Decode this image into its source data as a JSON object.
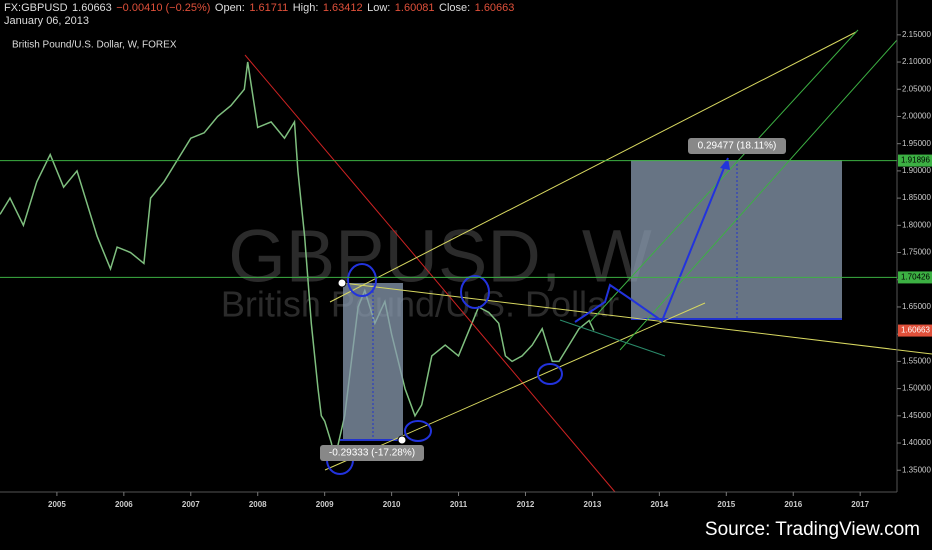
{
  "header": {
    "symbol": "FX:GBPUSD",
    "price": "1.60663",
    "change": "−0.00410 (−0.25%)",
    "open_label": "Open:",
    "open": "1.61711",
    "high_label": "High:",
    "high": "1.63412",
    "low_label": "Low:",
    "low": "1.60081",
    "close_label": "Close:",
    "close": "1.60663",
    "date": "January 06, 2013"
  },
  "chart_data": {
    "type": "line",
    "title": "British Pound/U.S. Dollar, W, FOREX",
    "watermark": "GBPUSD, W",
    "watermark_sub": "British Pound/U.S. Dollar",
    "xlim": [
      2004.15,
      2017.55
    ],
    "xticks": [
      2005,
      2006,
      2007,
      2008,
      2009,
      2010,
      2011,
      2012,
      2013,
      2014,
      2015,
      2016,
      2017
    ],
    "ylim": [
      1.31,
      2.214
    ],
    "yticks": [
      {
        "value": 1.35,
        "label": "1.35000"
      },
      {
        "value": 1.4,
        "label": "1.40000"
      },
      {
        "value": 1.45,
        "label": "1.45000"
      },
      {
        "value": 1.5,
        "label": "1.50000"
      },
      {
        "value": 1.55,
        "label": "1.55000"
      },
      {
        "value": 1.6,
        "label": "1.60000"
      },
      {
        "value": 1.65,
        "label": "1.65000"
      },
      {
        "value": 1.7,
        "label": "1.70000"
      },
      {
        "value": 1.75,
        "label": "1.75000"
      },
      {
        "value": 1.8,
        "label": "1.80000"
      },
      {
        "value": 1.85,
        "label": "1.85000"
      },
      {
        "value": 1.9,
        "label": "1.90000"
      },
      {
        "value": 1.95,
        "label": "1.95000"
      },
      {
        "value": 2.0,
        "label": "2.00000"
      },
      {
        "value": 2.05,
        "label": "2.05000"
      },
      {
        "value": 2.1,
        "label": "2.10000"
      },
      {
        "value": 2.15,
        "label": "2.15000"
      }
    ],
    "series": [
      {
        "name": "GBPUSD",
        "color": "#7fbf7f",
        "x": [
          2004.15,
          2004.3,
          2004.5,
          2004.7,
          2004.9,
          2005.1,
          2005.3,
          2005.6,
          2005.8,
          2005.9,
          2006.1,
          2006.3,
          2006.4,
          2006.6,
          2006.8,
          2007.0,
          2007.2,
          2007.4,
          2007.6,
          2007.8,
          2007.85,
          2008.0,
          2008.2,
          2008.4,
          2008.5,
          2008.55,
          2008.6,
          2008.7,
          2008.8,
          2008.9,
          2008.95,
          2009.0,
          2009.1,
          2009.15,
          2009.3,
          2009.4,
          2009.5,
          2009.6,
          2009.75,
          2009.9,
          2010.0,
          2010.2,
          2010.35,
          2010.45,
          2010.6,
          2010.8,
          2011.0,
          2011.2,
          2011.3,
          2011.45,
          2011.6,
          2011.7,
          2011.8,
          2011.95,
          2012.1,
          2012.25,
          2012.4,
          2012.5,
          2012.65,
          2012.8,
          2012.95,
          2013.02
        ],
        "values": [
          1.82,
          1.85,
          1.8,
          1.88,
          1.93,
          1.87,
          1.9,
          1.78,
          1.72,
          1.76,
          1.75,
          1.73,
          1.85,
          1.88,
          1.92,
          1.96,
          1.97,
          2.0,
          2.02,
          2.05,
          2.1,
          1.98,
          1.99,
          1.96,
          1.98,
          1.99,
          1.9,
          1.78,
          1.62,
          1.5,
          1.45,
          1.44,
          1.4,
          1.37,
          1.45,
          1.55,
          1.65,
          1.68,
          1.62,
          1.66,
          1.6,
          1.5,
          1.45,
          1.47,
          1.56,
          1.58,
          1.56,
          1.62,
          1.65,
          1.64,
          1.62,
          1.56,
          1.55,
          1.56,
          1.58,
          1.61,
          1.55,
          1.55,
          1.58,
          1.61,
          1.625,
          1.607
        ]
      }
    ],
    "levels": [
      {
        "value": 1.91896,
        "color": "#3cb043"
      },
      {
        "value": 1.70426,
        "color": "#3cb043"
      },
      {
        "value": 1.60663,
        "color": "#e0503a"
      }
    ],
    "measures": [
      "0.29477 (18.11%)",
      "-0.29333 (-17.28%)"
    ],
    "source": "Source: TradingView.com"
  }
}
